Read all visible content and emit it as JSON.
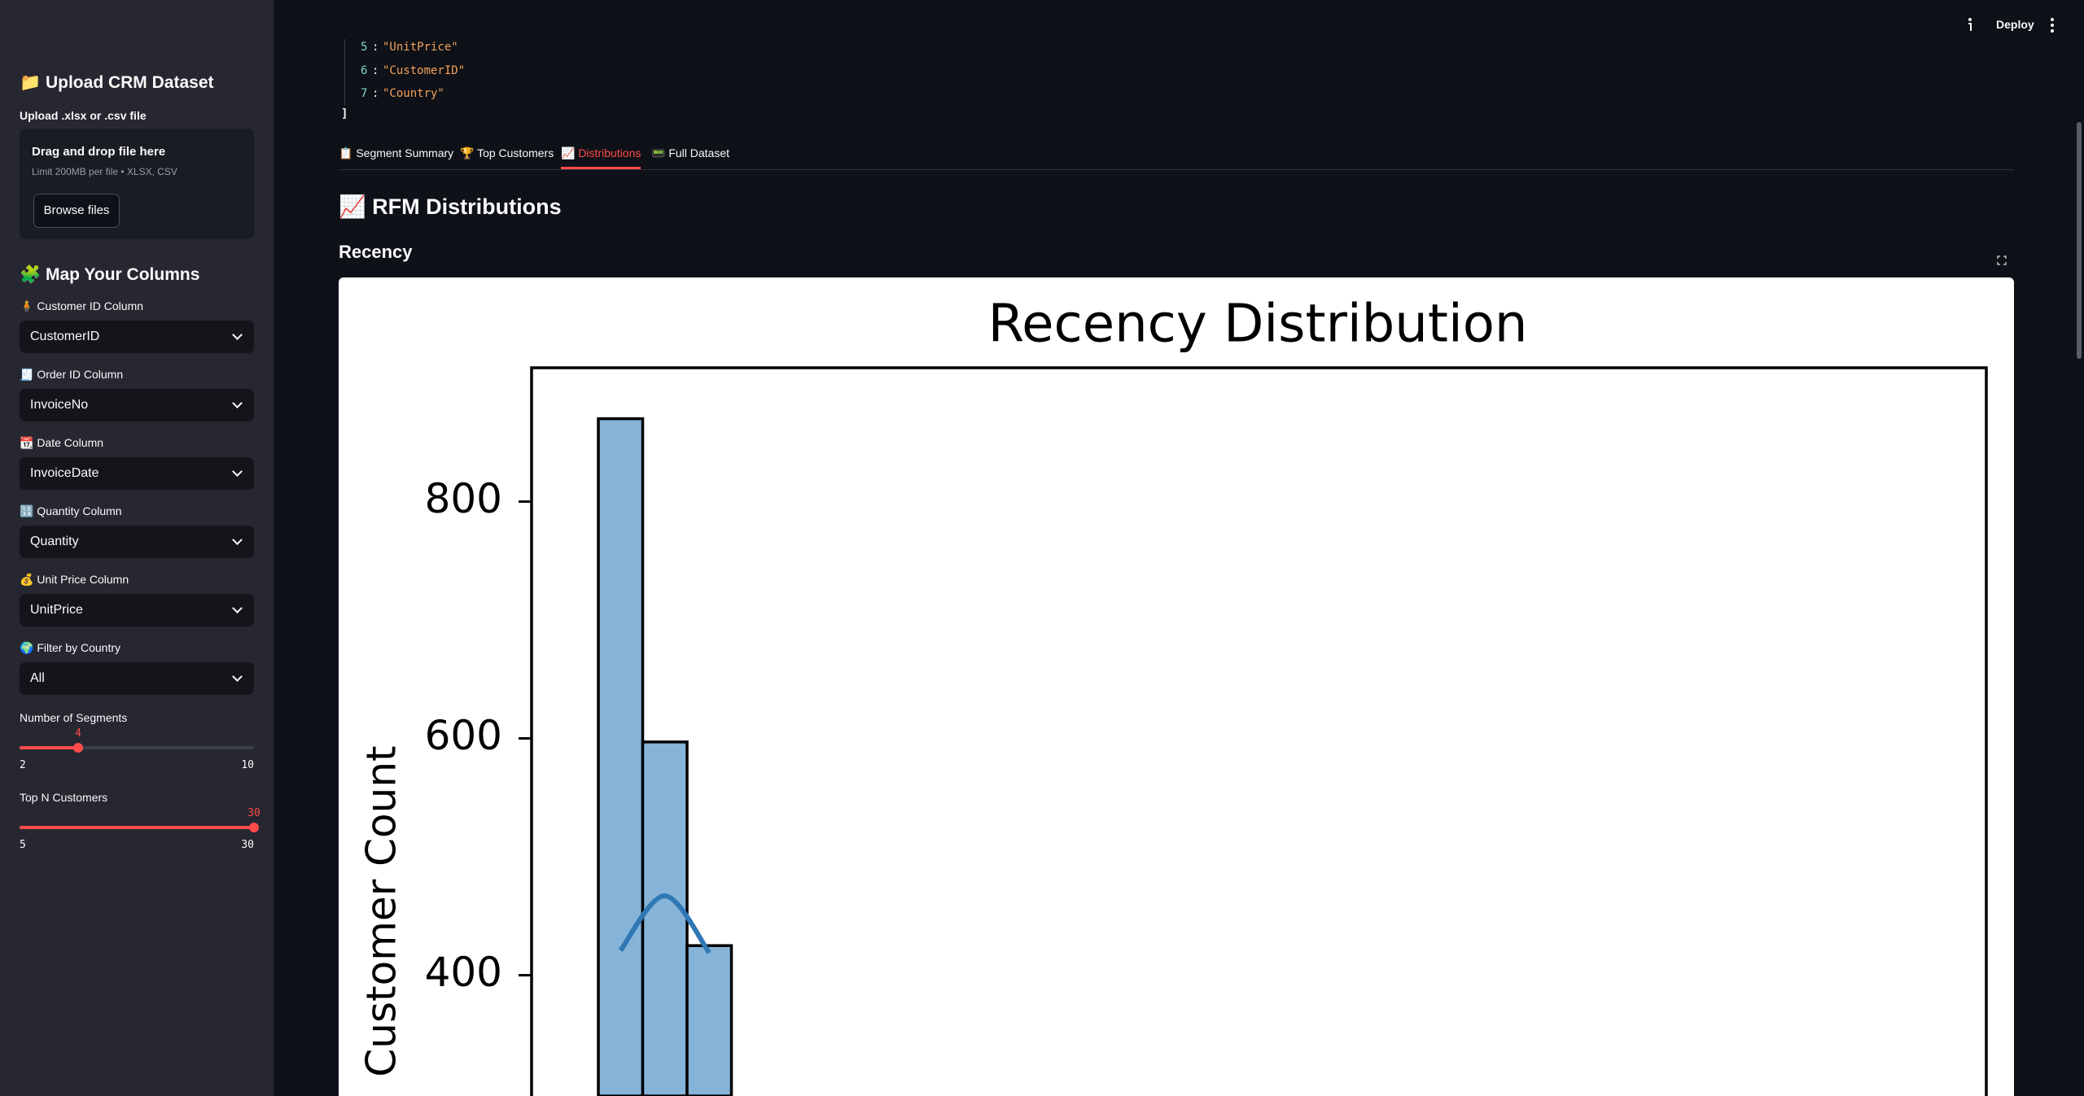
{
  "header": {
    "deploy": "Deploy"
  },
  "code": {
    "lines": [
      {
        "index": 5,
        "value": "\"UnitPrice\""
      },
      {
        "index": 6,
        "value": "\"CustomerID\""
      },
      {
        "index": 7,
        "value": "\"Country\""
      }
    ],
    "close": "]"
  },
  "sidebar": {
    "upload_title": "📁 Upload CRM Dataset",
    "upload_label": "Upload .xlsx or .csv file",
    "dropzone": {
      "title": "Drag and drop file here",
      "hint": "Limit 200MB per file • XLSX, CSV",
      "button": "Browse files"
    },
    "map_title": "🧩 Map Your Columns",
    "fields": [
      {
        "label": "🧍 Customer ID Column",
        "value": "CustomerID"
      },
      {
        "label": "🧾 Order ID Column",
        "value": "InvoiceNo"
      },
      {
        "label": "📆 Date Column",
        "value": "InvoiceDate"
      },
      {
        "label": "🔢 Quantity Column",
        "value": "Quantity"
      },
      {
        "label": "💰 Unit Price Column",
        "value": "UnitPrice"
      },
      {
        "label": "🌍 Filter by Country",
        "value": "All"
      }
    ],
    "sliders": [
      {
        "label": "Number of Segments",
        "value": 4,
        "min": 2,
        "max": 10
      },
      {
        "label": "Top N Customers",
        "value": 30,
        "min": 5,
        "max": 30
      }
    ]
  },
  "tabs": {
    "items": [
      "📋 Segment Summary",
      "🏆 Top Customers",
      "📈 Distributions",
      "📟 Full Dataset"
    ],
    "active": 2
  },
  "section_title": "📈 RFM Distributions",
  "subheader": "Recency",
  "chart_data": {
    "type": "bar",
    "title": "Recency Distribution",
    "y_label": "Customer Count",
    "categories": [
      null,
      null,
      null
    ],
    "series": [
      {
        "values": [
          870,
          597,
          425
        ],
        "color": "#86b4d9"
      },
      {
        "type": "line",
        "values": [
          421,
          467,
          419
        ],
        "color": "#2f78b4"
      }
    ],
    "ylim": [
      298,
      913
    ],
    "yticks": [
      400,
      600,
      800
    ]
  }
}
